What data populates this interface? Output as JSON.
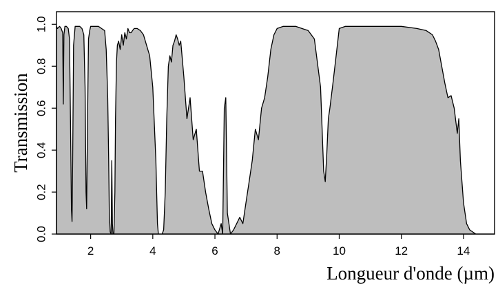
{
  "chart_data": {
    "type": "area",
    "title": "",
    "xlabel": "Longueur d'onde (µm)",
    "ylabel": "Transmission",
    "xlim": [
      0.9,
      15.0
    ],
    "ylim": [
      0.0,
      1.06
    ],
    "x_ticks": [
      "2",
      "4",
      "6",
      "8",
      "10",
      "12",
      "14"
    ],
    "y_ticks": [
      "0.0",
      "0.2",
      "0.4",
      "0.6",
      "0.8",
      "1.0"
    ],
    "grid": false,
    "fill_color": "#bebebe",
    "line_color": "#000000",
    "series": [
      {
        "x": [
          0.9,
          0.93,
          1.0,
          1.05,
          1.1,
          1.12,
          1.14,
          1.17,
          1.22,
          1.28,
          1.32,
          1.35,
          1.38,
          1.4,
          1.42,
          1.45,
          1.5,
          1.58,
          1.65,
          1.72,
          1.78,
          1.82,
          1.85,
          1.87,
          1.9,
          1.93,
          1.97,
          2.0,
          2.05,
          2.15,
          2.25,
          2.35,
          2.45,
          2.5,
          2.55,
          2.58,
          2.6,
          2.63,
          2.66,
          2.68,
          2.7,
          2.72,
          2.75,
          2.78,
          2.8,
          2.83,
          2.86,
          2.9,
          2.95,
          3.0,
          3.05,
          3.1,
          3.15,
          3.2,
          3.25,
          3.3,
          3.35,
          3.4,
          3.5,
          3.6,
          3.7,
          3.8,
          3.9,
          4.0,
          4.1,
          4.15,
          4.18,
          4.2,
          4.25,
          4.3,
          4.35,
          4.4,
          4.45,
          4.5,
          4.55,
          4.6,
          4.65,
          4.7,
          4.75,
          4.8,
          4.85,
          4.9,
          5.0,
          5.1,
          5.2,
          5.3,
          5.4,
          5.5,
          5.6,
          5.7,
          5.8,
          5.9,
          6.0,
          6.1,
          6.2,
          6.25,
          6.3,
          6.35,
          6.4,
          6.5,
          6.6,
          6.7,
          6.8,
          6.9,
          7.0,
          7.1,
          7.2,
          7.3,
          7.4,
          7.5,
          7.6,
          7.7,
          7.8,
          7.9,
          8.0,
          8.2,
          8.4,
          8.6,
          8.8,
          9.0,
          9.2,
          9.4,
          9.5,
          9.55,
          9.6,
          9.65,
          9.7,
          9.8,
          9.9,
          10.0,
          10.2,
          10.5,
          11.0,
          11.5,
          12.0,
          12.5,
          12.8,
          13.0,
          13.1,
          13.2,
          13.3,
          13.4,
          13.5,
          13.6,
          13.7,
          13.8,
          13.85,
          13.9,
          14.0,
          14.1,
          14.2,
          14.3,
          14.4,
          14.5,
          14.6,
          14.7,
          14.8,
          15.0
        ],
        "y": [
          0.99,
          0.98,
          0.99,
          0.98,
          0.96,
          0.62,
          0.95,
          0.99,
          0.99,
          0.98,
          0.93,
          0.55,
          0.12,
          0.06,
          0.35,
          0.9,
          0.99,
          0.99,
          0.99,
          0.98,
          0.95,
          0.7,
          0.2,
          0.12,
          0.55,
          0.93,
          0.97,
          0.99,
          0.99,
          0.99,
          0.99,
          0.98,
          0.97,
          0.88,
          0.65,
          0.35,
          0.1,
          0.01,
          0.0,
          0.35,
          0.05,
          0.0,
          0.0,
          0.2,
          0.55,
          0.82,
          0.9,
          0.92,
          0.88,
          0.95,
          0.9,
          0.96,
          0.93,
          0.98,
          0.96,
          0.96,
          0.97,
          0.98,
          0.98,
          0.97,
          0.95,
          0.9,
          0.85,
          0.7,
          0.35,
          0.05,
          0.0,
          0.0,
          0.0,
          0.0,
          0.02,
          0.2,
          0.55,
          0.8,
          0.85,
          0.82,
          0.9,
          0.92,
          0.95,
          0.93,
          0.9,
          0.92,
          0.75,
          0.55,
          0.65,
          0.45,
          0.5,
          0.3,
          0.3,
          0.2,
          0.12,
          0.05,
          0.02,
          0.0,
          0.05,
          0.0,
          0.6,
          0.65,
          0.1,
          0.0,
          0.02,
          0.05,
          0.08,
          0.05,
          0.15,
          0.25,
          0.35,
          0.5,
          0.45,
          0.6,
          0.65,
          0.75,
          0.88,
          0.95,
          0.98,
          0.99,
          0.99,
          0.99,
          0.98,
          0.97,
          0.93,
          0.7,
          0.3,
          0.25,
          0.38,
          0.55,
          0.6,
          0.72,
          0.85,
          0.98,
          0.99,
          0.99,
          0.99,
          0.99,
          0.99,
          0.98,
          0.97,
          0.95,
          0.92,
          0.88,
          0.8,
          0.72,
          0.65,
          0.66,
          0.6,
          0.48,
          0.55,
          0.35,
          0.15,
          0.05,
          0.02,
          0.01,
          0.0,
          0.0,
          0.0,
          0.0,
          0.0,
          0.0
        ]
      }
    ]
  }
}
